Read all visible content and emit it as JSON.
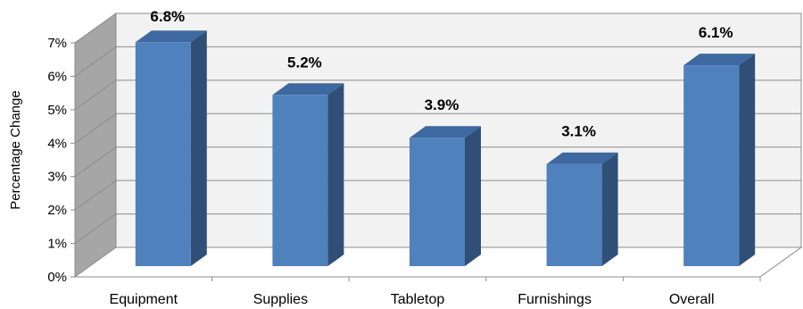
{
  "chart_data": {
    "type": "bar",
    "style": "3d-column",
    "categories": [
      "Equipment",
      "Supplies",
      "Tabletop",
      "Furnishings",
      "Overall"
    ],
    "values": [
      6.8,
      5.2,
      3.9,
      3.1,
      6.1
    ],
    "data_labels": [
      "6.8%",
      "5.2%",
      "3.9%",
      "3.1%",
      "6.1%"
    ],
    "ylabel": "Percentage Change",
    "ylim": [
      0,
      7
    ],
    "yticks": [
      0,
      1,
      2,
      3,
      4,
      5,
      6,
      7
    ],
    "ytick_labels": [
      "0%",
      "1%",
      "2%",
      "3%",
      "4%",
      "5%",
      "6%",
      "7%"
    ],
    "grid": true,
    "legend": "none",
    "colors": {
      "bar_front": "#4F81BD",
      "bar_side": "#2F4F77",
      "bar_top": "#3E68A0",
      "back_wall": "#F2F2F2",
      "side_wall": "#A6A6A6",
      "floor": "#FFFFFF",
      "grid": "#8C8C8C"
    }
  }
}
